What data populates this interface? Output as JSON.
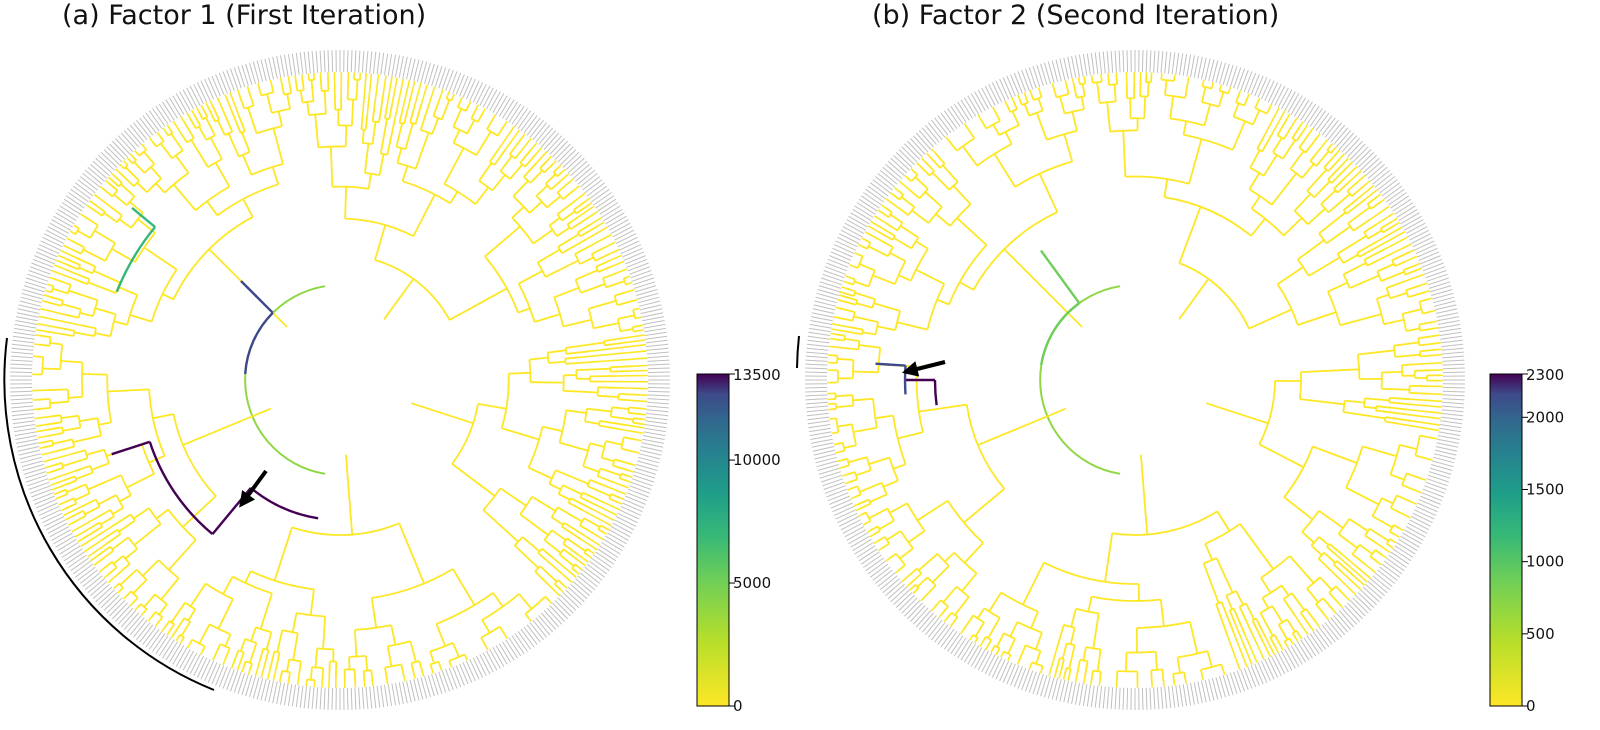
{
  "panels": [
    {
      "title": "(a)  Factor 1  (First Iteration)",
      "colorbar": {
        "min": 0,
        "max": 13500,
        "ticks": [
          "0",
          "5000",
          "10000",
          "13500"
        ],
        "tick_values": [
          0,
          5000,
          10000,
          13500
        ]
      },
      "highlight": "long black arc along lower-left clade; arrow points to dark purple branch"
    },
    {
      "title": "(b)  Factor 2  (Second Iteration)",
      "colorbar": {
        "min": 0,
        "max": 2300,
        "ticks": [
          "0",
          "500",
          "1000",
          "1500",
          "2000",
          "2300"
        ],
        "tick_values": [
          0,
          500,
          1000,
          1500,
          2000,
          2300
        ]
      },
      "highlight": "short black arc on left; arrow points to small purple clade"
    }
  ],
  "colors": {
    "low": "#fde725",
    "mid": "#35b779",
    "mid2": "#31688e",
    "high": "#440154",
    "leaf": "#c0c0c0",
    "marker": "#000000"
  },
  "chart_data": {
    "type": "diagram",
    "kind": "circular phylogenetic tree colored by factor value (viridis)"
  }
}
